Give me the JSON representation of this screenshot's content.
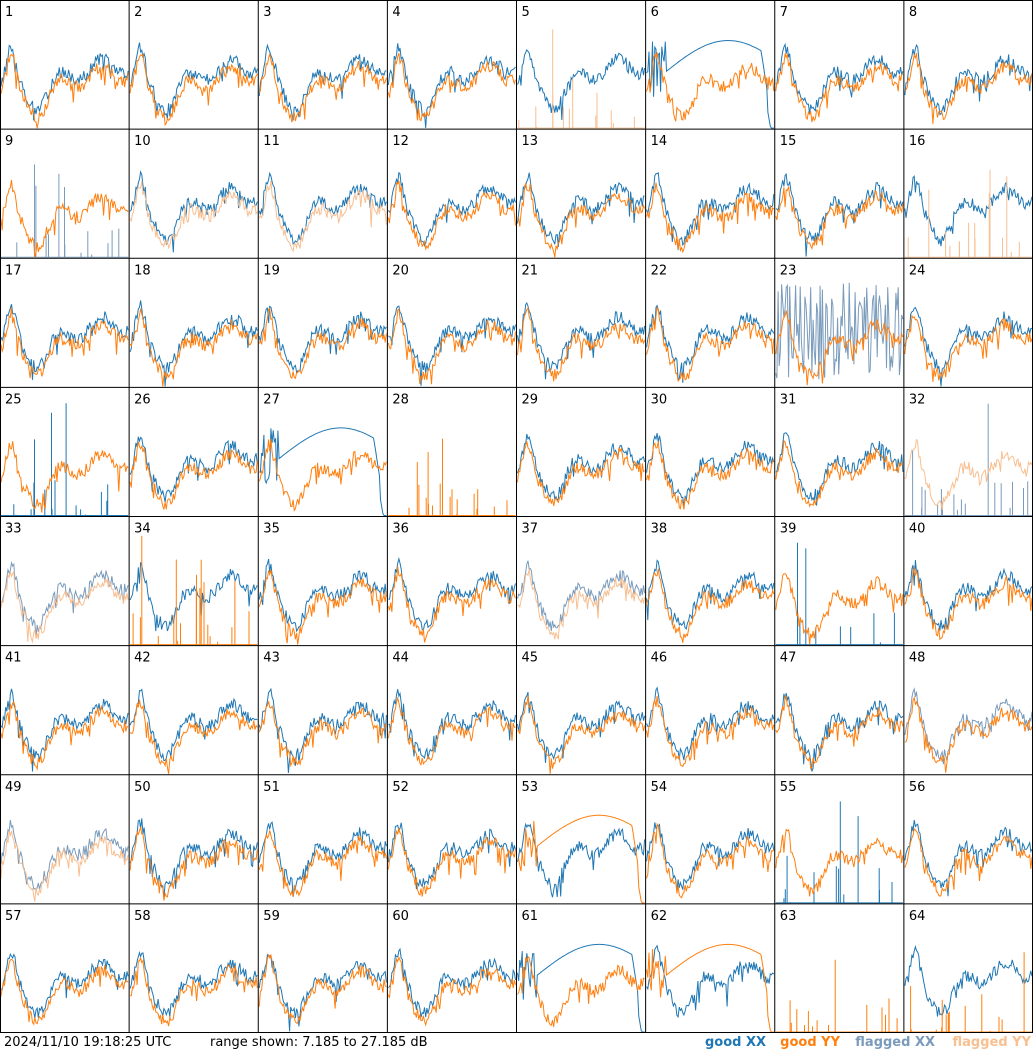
{
  "footer": {
    "timestamp": "2024/11/10 19:18:25 UTC",
    "range_text": "range shown: 7.185 to 27.185 dB"
  },
  "legend": {
    "good_xx": "good XX",
    "good_yy": "good YY",
    "flagged_xx": "flagged XX",
    "flagged_yy": "flagged YY"
  },
  "colors": {
    "good_xx": "#1f77b4",
    "good_yy": "#ff7f0e",
    "flagged_xx": "#7a9bbb",
    "flagged_yy": "#f8bf91",
    "grid": "#000000"
  },
  "chart_data": {
    "type": "line",
    "ylim": [
      7.185,
      27.185
    ],
    "units": "dB",
    "grid": {
      "rows": 8,
      "cols": 8
    },
    "panels": [
      {
        "id": "1",
        "xx": "normal",
        "yy": "normal"
      },
      {
        "id": "2",
        "xx": "normal",
        "yy": "normal"
      },
      {
        "id": "3",
        "xx": "normal",
        "yy": "normal"
      },
      {
        "id": "4",
        "xx": "normal",
        "yy": "normal"
      },
      {
        "id": "5",
        "xx": "normal",
        "yy": "flagged_spikes"
      },
      {
        "id": "6",
        "xx": "dip",
        "yy": "normal"
      },
      {
        "id": "7",
        "xx": "normal",
        "yy": "normal"
      },
      {
        "id": "8",
        "xx": "normal",
        "yy": "normal"
      },
      {
        "id": "9",
        "xx": "flagged_spikes",
        "yy": "normal"
      },
      {
        "id": "10",
        "xx": "normal",
        "yy": "flagged_curve"
      },
      {
        "id": "11",
        "xx": "normal",
        "yy": "flagged_curve"
      },
      {
        "id": "12",
        "xx": "normal",
        "yy": "normal"
      },
      {
        "id": "13",
        "xx": "normal",
        "yy": "normal"
      },
      {
        "id": "14",
        "xx": "normal",
        "yy": "normal"
      },
      {
        "id": "15",
        "xx": "normal",
        "yy": "normal"
      },
      {
        "id": "16",
        "xx": "normal",
        "yy": "flagged_spikes"
      },
      {
        "id": "17",
        "xx": "normal",
        "yy": "normal"
      },
      {
        "id": "18",
        "xx": "normal",
        "yy": "normal"
      },
      {
        "id": "19",
        "xx": "normal",
        "yy": "normal"
      },
      {
        "id": "20",
        "xx": "normal",
        "yy": "normal"
      },
      {
        "id": "21",
        "xx": "normal",
        "yy": "normal"
      },
      {
        "id": "22",
        "xx": "normal",
        "yy": "normal"
      },
      {
        "id": "23",
        "xx": "flagged_noise",
        "yy": "normal"
      },
      {
        "id": "24",
        "xx": "normal",
        "yy": "normal"
      },
      {
        "id": "25",
        "xx": "spikes_low",
        "yy": "normal"
      },
      {
        "id": "26",
        "xx": "normal",
        "yy": "normal"
      },
      {
        "id": "27",
        "xx": "dip",
        "yy": "normal"
      },
      {
        "id": "28",
        "xx": "none",
        "yy": "spikes"
      },
      {
        "id": "29",
        "xx": "normal",
        "yy": "normal"
      },
      {
        "id": "30",
        "xx": "normal",
        "yy": "normal"
      },
      {
        "id": "31",
        "xx": "normal",
        "yy": "normal"
      },
      {
        "id": "32",
        "xx": "flagged_spikes",
        "yy": "flagged_curve"
      },
      {
        "id": "33",
        "xx": "flagged_curve",
        "yy": "flagged_curve"
      },
      {
        "id": "34",
        "xx": "normal",
        "yy": "spikes"
      },
      {
        "id": "35",
        "xx": "normal",
        "yy": "normal"
      },
      {
        "id": "36",
        "xx": "normal",
        "yy": "normal"
      },
      {
        "id": "37",
        "xx": "flagged_curve",
        "yy": "flagged_curve"
      },
      {
        "id": "38",
        "xx": "normal",
        "yy": "normal"
      },
      {
        "id": "39",
        "xx": "spikes",
        "yy": "normal"
      },
      {
        "id": "40",
        "xx": "normal",
        "yy": "normal"
      },
      {
        "id": "41",
        "xx": "normal",
        "yy": "normal"
      },
      {
        "id": "42",
        "xx": "normal",
        "yy": "normal"
      },
      {
        "id": "43",
        "xx": "normal",
        "yy": "normal"
      },
      {
        "id": "44",
        "xx": "normal",
        "yy": "normal"
      },
      {
        "id": "45",
        "xx": "normal",
        "yy": "normal"
      },
      {
        "id": "46",
        "xx": "normal",
        "yy": "normal"
      },
      {
        "id": "47",
        "xx": "normal",
        "yy": "normal"
      },
      {
        "id": "48",
        "xx": "flagged_curve",
        "yy": "normal"
      },
      {
        "id": "49",
        "xx": "flagged_curve",
        "yy": "flagged_curve"
      },
      {
        "id": "50",
        "xx": "normal",
        "yy": "normal"
      },
      {
        "id": "51",
        "xx": "normal",
        "yy": "normal"
      },
      {
        "id": "52",
        "xx": "normal",
        "yy": "normal"
      },
      {
        "id": "53",
        "xx": "normal",
        "yy": "dip"
      },
      {
        "id": "54",
        "xx": "normal",
        "yy": "normal"
      },
      {
        "id": "55",
        "xx": "spikes",
        "yy": "normal"
      },
      {
        "id": "56",
        "xx": "normal",
        "yy": "normal"
      },
      {
        "id": "57",
        "xx": "normal",
        "yy": "normal"
      },
      {
        "id": "58",
        "xx": "normal",
        "yy": "normal"
      },
      {
        "id": "59",
        "xx": "normal",
        "yy": "normal"
      },
      {
        "id": "60",
        "xx": "normal",
        "yy": "normal"
      },
      {
        "id": "61",
        "xx": "dip",
        "yy": "normal"
      },
      {
        "id": "62",
        "xx": "normal",
        "yy": "dip"
      },
      {
        "id": "63",
        "xx": "none",
        "yy": "spikes"
      },
      {
        "id": "64",
        "xx": "normal",
        "yy": "spikes"
      }
    ]
  }
}
